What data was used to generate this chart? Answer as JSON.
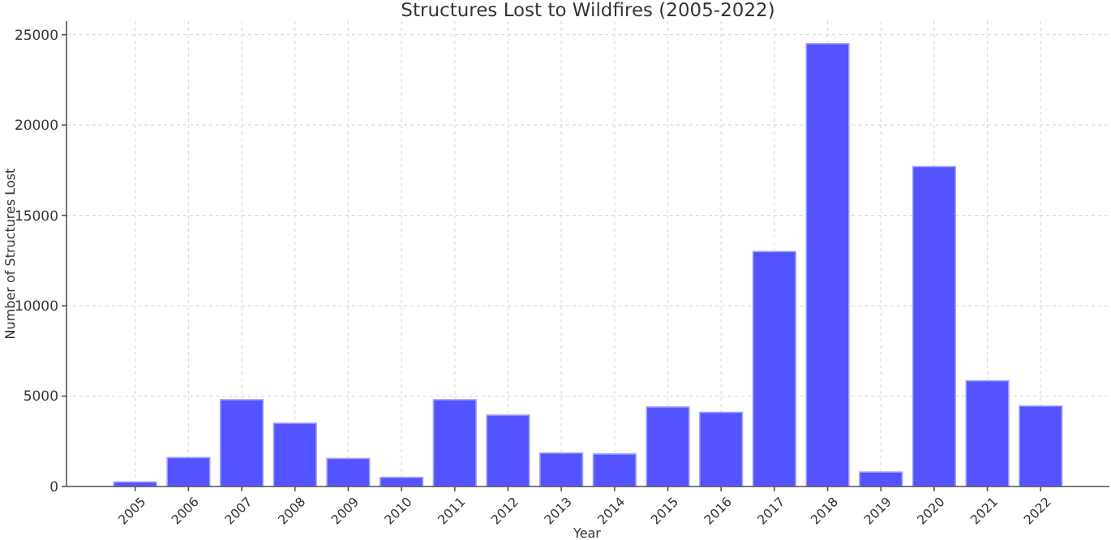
{
  "chart_data": {
    "type": "bar",
    "title": "Structures Lost to Wildfires (2005-2022)",
    "xlabel": "Year",
    "ylabel": "Number of Structures Lost",
    "categories": [
      "2005",
      "2006",
      "2007",
      "2008",
      "2009",
      "2010",
      "2011",
      "2012",
      "2013",
      "2014",
      "2015",
      "2016",
      "2017",
      "2018",
      "2019",
      "2020",
      "2021",
      "2022"
    ],
    "values": [
      250,
      1600,
      4800,
      3500,
      1550,
      500,
      4800,
      3950,
      1850,
      1800,
      4400,
      4100,
      13000,
      24500,
      800,
      17700,
      5850,
      4450
    ],
    "color": "#4a4aff",
    "ylim": [
      0,
      25750
    ],
    "yticks": [
      0,
      5000,
      10000,
      15000,
      20000,
      25000
    ],
    "grid": true
  }
}
